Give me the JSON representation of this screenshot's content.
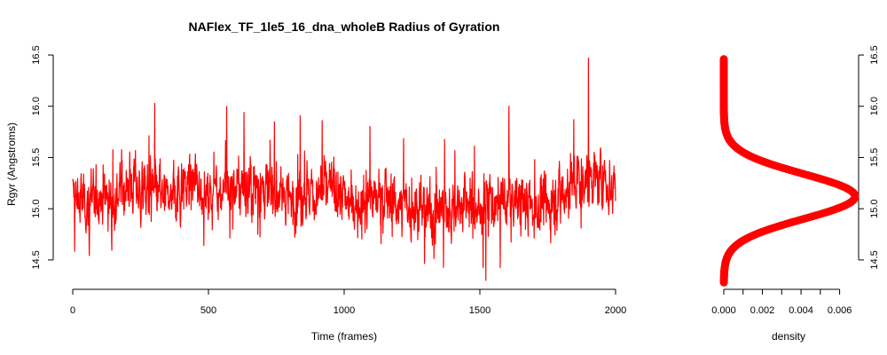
{
  "figure": {
    "title": "NAFlex_TF_1le5_16_dna_wholeB Radius of Gyration"
  },
  "colors": {
    "series": "#ff0000",
    "axis": "#000000",
    "background": "#ffffff"
  },
  "chart_data": [
    {
      "type": "line",
      "title": "NAFlex_TF_1le5_16_dna_wholeB Radius of Gyration",
      "xlabel": "Time (frames)",
      "ylabel": "Rgyr (Angstroms)",
      "xlim": [
        0,
        2000
      ],
      "ylim": [
        14.3,
        16.5
      ],
      "grid": false,
      "legend": "none",
      "x_ticks": [
        {
          "value": 0,
          "label": "0"
        },
        {
          "value": 500,
          "label": "500"
        },
        {
          "value": 1000,
          "label": "1000"
        },
        {
          "value": 1500,
          "label": "1500"
        },
        {
          "value": 2000,
          "label": "2000"
        }
      ],
      "y_ticks": [
        {
          "value": 14.5,
          "label": "14.5"
        },
        {
          "value": 15.0,
          "label": "15.0"
        },
        {
          "value": 15.5,
          "label": "15.5"
        },
        {
          "value": 16.0,
          "label": "16.0"
        },
        {
          "value": 16.5,
          "label": "16.5"
        }
      ],
      "series": [
        {
          "color": "#ff0000",
          "x": [
            0,
            50,
            100,
            150,
            200,
            250,
            300,
            350,
            400,
            450,
            500,
            550,
            600,
            650,
            700,
            750,
            800,
            850,
            900,
            950,
            1000,
            1050,
            1100,
            1150,
            1200,
            1250,
            1300,
            1350,
            1400,
            1450,
            1500,
            1550,
            1600,
            1650,
            1700,
            1750,
            1800,
            1850,
            1900,
            1950,
            2000
          ],
          "y": [
            15.1,
            15.05,
            15.15,
            15.1,
            15.25,
            15.2,
            15.15,
            15.1,
            15.2,
            15.25,
            15.15,
            15.2,
            15.2,
            15.25,
            15.2,
            15.15,
            15.1,
            15.15,
            15.15,
            15.2,
            15.1,
            15.05,
            15.1,
            15.1,
            15.05,
            15.0,
            14.95,
            15.0,
            15.0,
            15.05,
            15.0,
            15.05,
            15.05,
            15.1,
            15.0,
            15.05,
            15.15,
            15.25,
            15.3,
            15.25,
            15.2
          ],
          "y_min": 14.3,
          "y_max": 16.47,
          "n_frames": 2000
        }
      ]
    },
    {
      "type": "line",
      "title": "",
      "xlabel": "density",
      "ylabel": "",
      "xlim": [
        0,
        0.0068
      ],
      "ylim": [
        14.3,
        16.5
      ],
      "legend": "none",
      "grid": false,
      "x_ticks": [
        {
          "value": 0.0,
          "label": "0.000"
        },
        {
          "value": 0.001,
          "label": ""
        },
        {
          "value": 0.002,
          "label": "0.002"
        },
        {
          "value": 0.003,
          "label": ""
        },
        {
          "value": 0.004,
          "label": "0.004"
        },
        {
          "value": 0.005,
          "label": ""
        },
        {
          "value": 0.006,
          "label": "0.006"
        }
      ],
      "y_ticks": [
        {
          "value": 14.5,
          "label": "14.5"
        },
        {
          "value": 15.0,
          "label": "15.0"
        },
        {
          "value": 15.5,
          "label": "15.5"
        },
        {
          "value": 16.0,
          "label": "16.0"
        },
        {
          "value": 16.5,
          "label": "16.5"
        }
      ],
      "series": [
        {
          "color": "#ff0000",
          "mean": 15.12,
          "sd": 0.22,
          "peak": 0.0068,
          "y_from": 14.28,
          "y_to": 16.46
        }
      ]
    }
  ]
}
